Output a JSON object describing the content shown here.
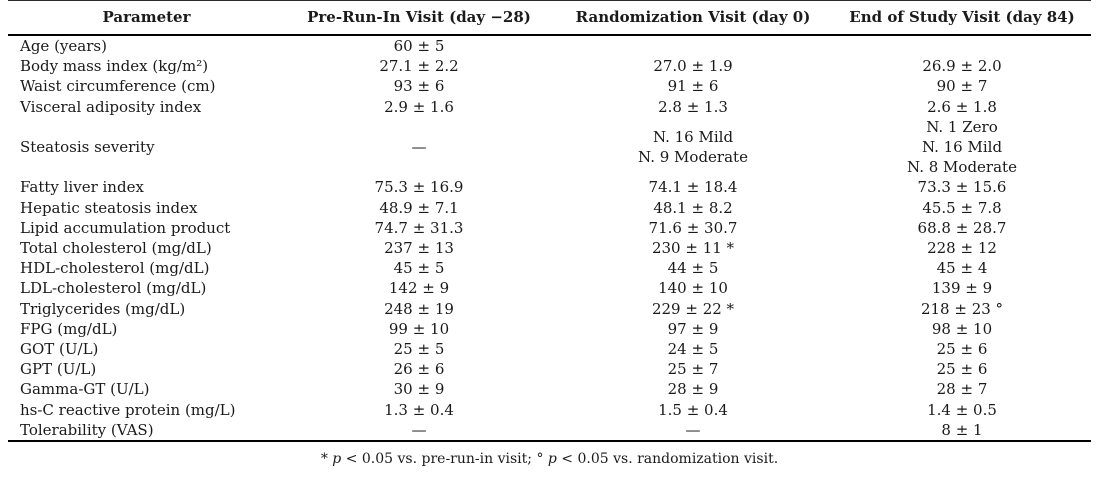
{
  "table": {
    "headers": [
      "Parameter",
      "Pre-Run-In Visit (day −28)",
      "Randomization Visit (day 0)",
      "End of Study Visit (day 84)"
    ],
    "rows": [
      [
        "Age (years)",
        "60 ± 5",
        "",
        ""
      ],
      [
        "Body mass index (kg/m²)",
        "27.1 ± 2.2",
        "27.0 ± 1.9",
        "26.9 ± 2.0"
      ],
      [
        "Waist circumference (cm)",
        "93 ± 6",
        "91 ± 6",
        "90 ± 7"
      ],
      [
        "Visceral adiposity index",
        "2.9 ± 1.6",
        "2.8 ± 1.3",
        "2.6 ± 1.8"
      ],
      [
        "Steatosis severity",
        "—",
        "N. 16 Mild\nN. 9 Moderate",
        "N. 1 Zero\nN. 16 Mild\nN. 8 Moderate"
      ],
      [
        "Fatty liver index",
        "75.3 ± 16.9",
        "74.1 ± 18.4",
        "73.3 ± 15.6"
      ],
      [
        "Hepatic steatosis index",
        "48.9 ± 7.1",
        "48.1 ± 8.2",
        "45.5 ± 7.8"
      ],
      [
        "Lipid accumulation product",
        "74.7 ± 31.3",
        "71.6 ± 30.7",
        "68.8 ± 28.7"
      ],
      [
        "Total cholesterol (mg/dL)",
        "237 ± 13",
        "230 ± 11 *",
        "228 ± 12"
      ],
      [
        "HDL-cholesterol (mg/dL)",
        "45 ± 5",
        "44 ± 5",
        "45 ± 4"
      ],
      [
        "LDL-cholesterol (mg/dL)",
        "142 ± 9",
        "140 ± 10",
        "139 ± 9"
      ],
      [
        "Triglycerides (mg/dL)",
        "248 ± 19",
        "229 ± 22 *",
        "218 ± 23 °"
      ],
      [
        "FPG (mg/dL)",
        "99 ± 10",
        "97 ± 9",
        "98 ± 10"
      ],
      [
        "GOT (U/L)",
        "25 ± 5",
        "24 ± 5",
        "25 ± 6"
      ],
      [
        "GPT (U/L)",
        "26 ± 6",
        "25 ± 7",
        "25 ± 6"
      ],
      [
        "Gamma-GT (U/L)",
        "30 ± 9",
        "28 ± 9",
        "28 ± 7"
      ],
      [
        "hs-C reactive protein (mg/L)",
        "1.3 ± 0.4",
        "1.5 ± 0.4",
        "1.4 ± 0.5"
      ],
      [
        "Tolerability (VAS)",
        "—",
        "—",
        "8 ± 1"
      ]
    ]
  },
  "footnote": {
    "star_marker": "* ",
    "p1": "p",
    "text1": " < 0.05 vs. pre-run-in visit; ",
    "ring_marker": "° ",
    "p2": "p",
    "text2": " < 0.05 vs. randomization visit."
  },
  "colors": {
    "text": "#1a1a1a",
    "rule": "#000000"
  }
}
